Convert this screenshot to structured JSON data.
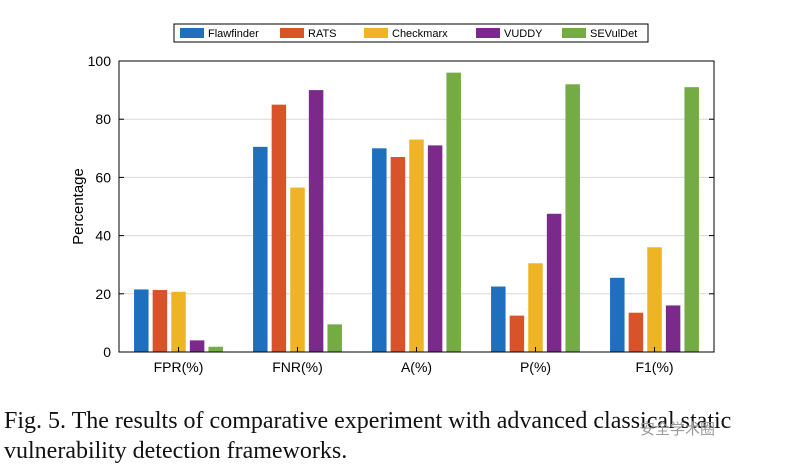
{
  "chart_data": {
    "type": "bar",
    "categories": [
      "FPR(%)",
      "FNR(%)",
      "A(%)",
      "P(%)",
      "F1(%)"
    ],
    "series": [
      {
        "name": "Flawfinder",
        "color": "#1f6fbf",
        "values": [
          21.5,
          70.5,
          70,
          22.5,
          25.5
        ]
      },
      {
        "name": "RATS",
        "color": "#d9532a",
        "values": [
          21.3,
          85,
          67,
          12.5,
          13.5
        ]
      },
      {
        "name": "Checkmarx",
        "color": "#efb426",
        "values": [
          20.7,
          56.5,
          73,
          30.5,
          36
        ]
      },
      {
        "name": "VUDDY",
        "color": "#7b2a8b",
        "values": [
          4,
          90,
          71,
          47.5,
          16
        ]
      },
      {
        "name": "SEVulDet",
        "color": "#74ab44",
        "values": [
          1.8,
          9.5,
          96,
          92,
          91
        ]
      }
    ],
    "ylabel": "Percentage",
    "xlabel": "",
    "ylim": [
      0,
      100
    ],
    "yticks": [
      0,
      20,
      40,
      60,
      80,
      100
    ],
    "grid": true,
    "legend_position": "top"
  },
  "caption": "Fig. 5.  The results of comparative experiment with advanced classical static vulnerability detection frameworks.",
  "watermark": "安全学术圈"
}
